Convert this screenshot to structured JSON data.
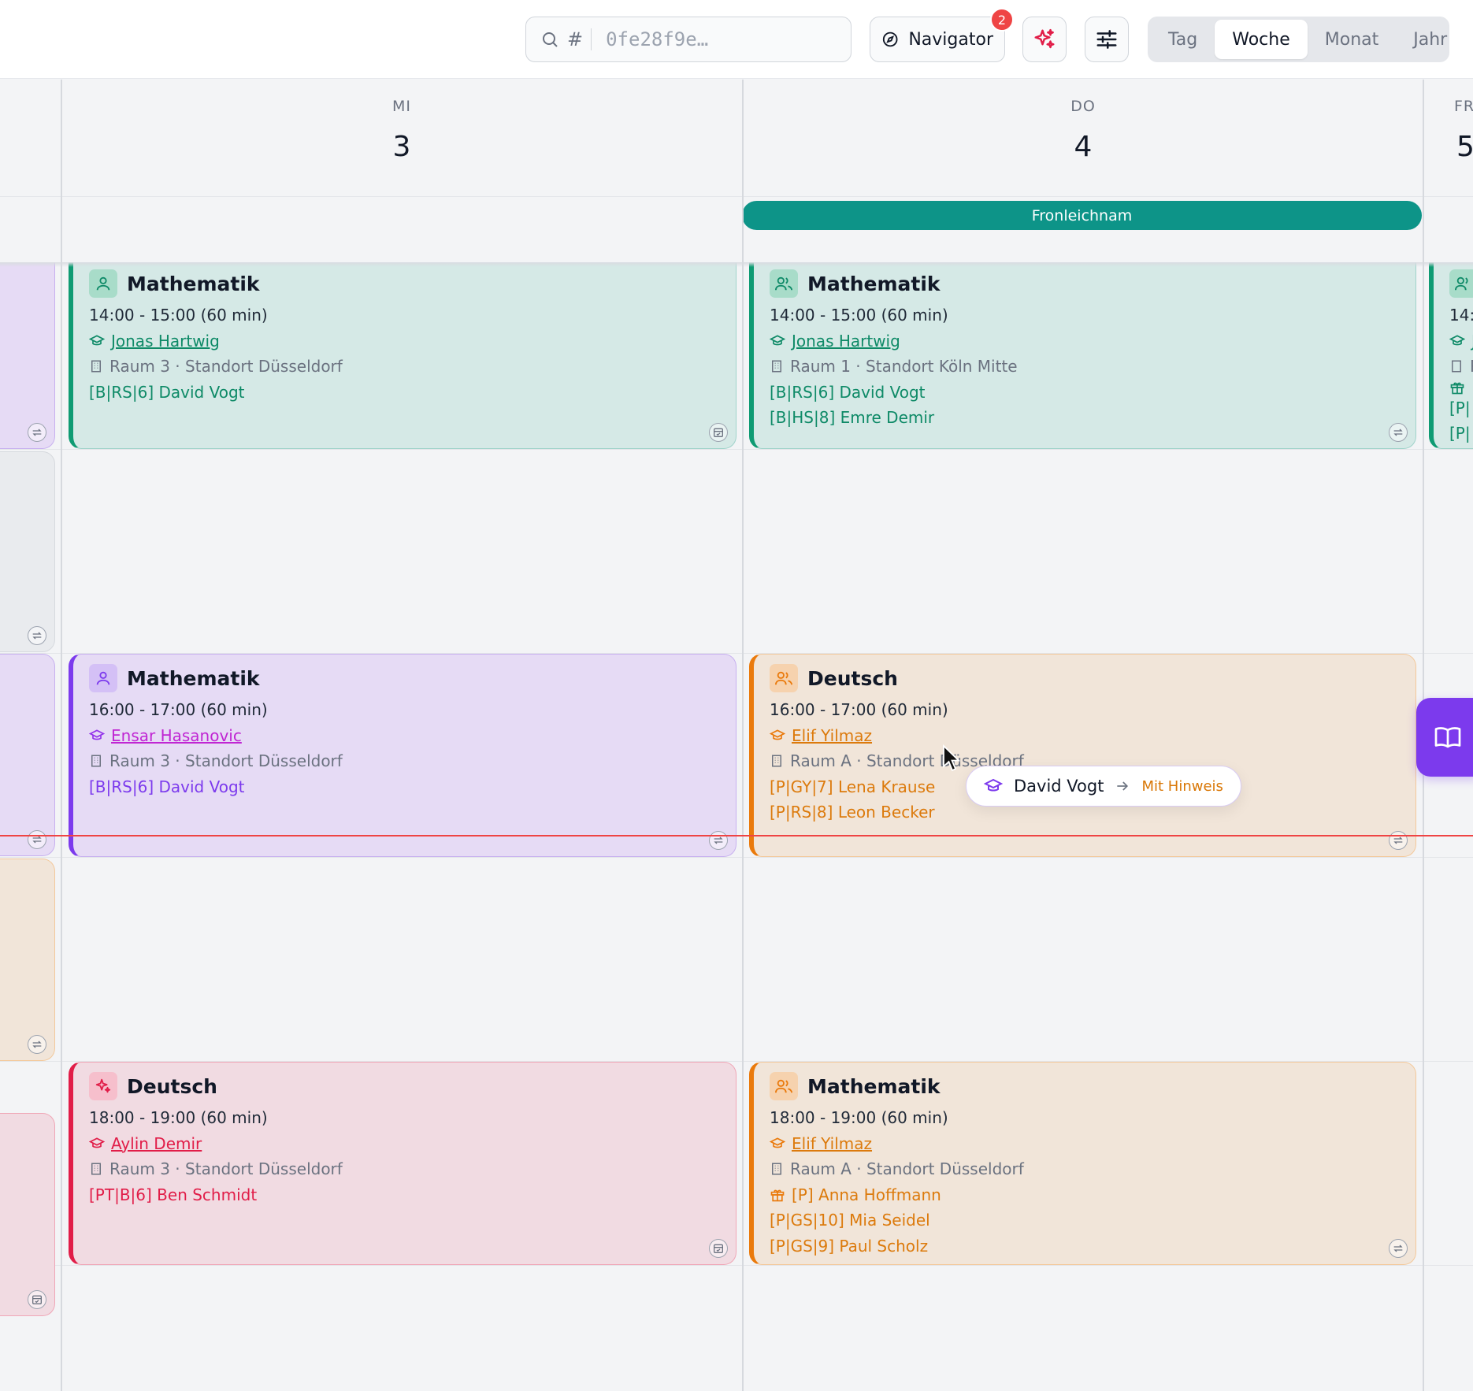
{
  "header": {
    "search": {
      "prefix": "#",
      "placeholder": "0fe28f9e…"
    },
    "navigator": {
      "label": "Navigator",
      "badge": "2"
    },
    "views": [
      "Tag",
      "Woche",
      "Monat",
      "Jahr"
    ],
    "active_view": "Woche"
  },
  "days": [
    {
      "dow": "MI",
      "num": "3"
    },
    {
      "dow": "DO",
      "num": "4"
    },
    {
      "dow": "FR",
      "num": "5"
    }
  ],
  "holiday": {
    "label": "Fronleichnam"
  },
  "events": {
    "wed_1": {
      "title": "Mathematik",
      "time": "14:00 - 15:00 (60 min)",
      "teacher": "Jonas Hartwig",
      "room": "Raum 3 · Standort Düsseldorf",
      "students": [
        "[B|RS|6] David Vogt"
      ]
    },
    "thu_1": {
      "title": "Mathematik",
      "time": "14:00 - 15:00 (60 min)",
      "teacher": "Jonas Hartwig",
      "room": "Raum 1 · Standort Köln Mitte",
      "students": [
        "[B|RS|6] David Vogt",
        "[B|HS|8] Emre Demir"
      ]
    },
    "fri_1": {
      "title": "",
      "time": "14:",
      "teacher": "J",
      "room": "R",
      "students": [
        "[P|",
        "[P|"
      ]
    },
    "wed_2": {
      "title": "Mathematik",
      "time": "16:00 - 17:00 (60 min)",
      "teacher": "Ensar Hasanovic",
      "room": "Raum 3 · Standort Düsseldorf",
      "students": [
        "[B|RS|6] David Vogt"
      ]
    },
    "thu_2": {
      "title": "Deutsch",
      "time": "16:00 - 17:00 (60 min)",
      "teacher": "Elif Yilmaz",
      "room": "Raum A · Standort Düsseldorf",
      "students": [
        "[P|GY|7] Lena Krause",
        "[P|RS|8] Leon Becker"
      ]
    },
    "wed_3": {
      "title": "Deutsch",
      "time": "18:00 - 19:00 (60 min)",
      "teacher": "Aylin Demir",
      "room": "Raum 3 · Standort Düsseldorf",
      "students": [
        "[PT|B|6] Ben Schmidt"
      ]
    },
    "thu_3": {
      "title": "Mathematik",
      "time": "18:00 - 19:00 (60 min)",
      "teacher": "Elif Yilmaz",
      "room": "Raum A · Standort Düsseldorf",
      "trial": "[P] Anna Hoffmann",
      "students": [
        "[P|GS|10] Mia Seidel",
        "[P|GS|9] Paul Scholz"
      ]
    }
  },
  "tooltip": {
    "name": "David Vogt",
    "note": "Mit Hinweis"
  },
  "colors": {
    "green": "#0e9b73",
    "purple": "#7c3aed",
    "orange": "#ea7a0c",
    "pink": "#e11d48",
    "holiday": "#0d9488",
    "now": "#ef4444"
  },
  "icons": [
    "search-icon",
    "compass-icon",
    "sparkles-icon",
    "sliders-icon",
    "user-icon",
    "users-icon",
    "graduation-cap-icon",
    "building-icon",
    "gift-icon",
    "repeat-icon",
    "calendar-check-icon",
    "book-open-icon"
  ]
}
